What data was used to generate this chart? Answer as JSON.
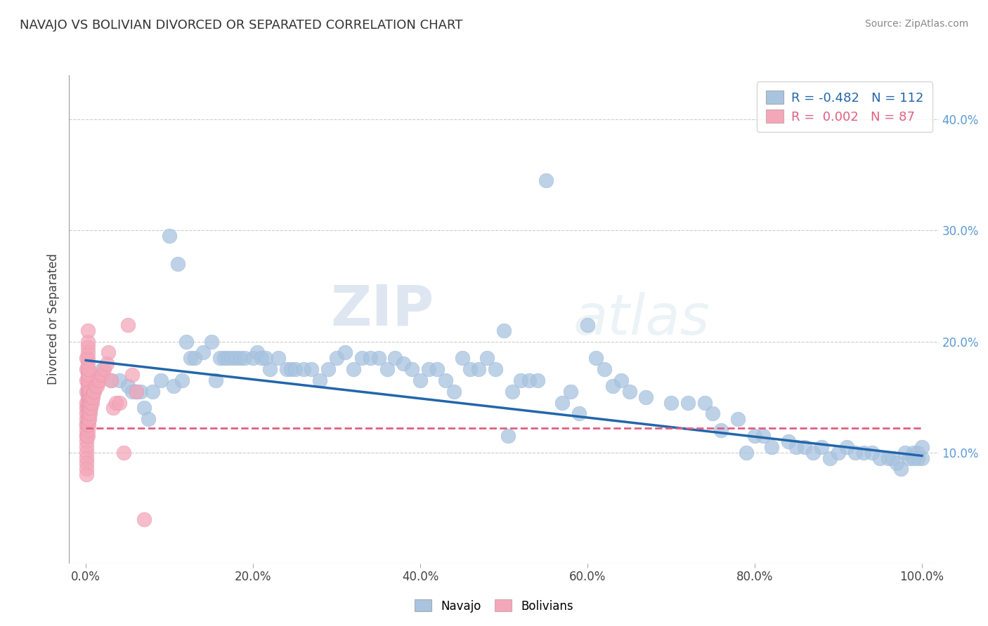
{
  "title": "NAVAJO VS BOLIVIAN DIVORCED OR SEPARATED CORRELATION CHART",
  "source_text": "Source: ZipAtlas.com",
  "ylabel": "Divorced or Separated",
  "navajo_R": "-0.482",
  "navajo_N": "112",
  "bolivian_R": "0.002",
  "bolivian_N": "87",
  "navajo_color": "#a8c4e0",
  "bolivian_color": "#f4a7b9",
  "navajo_line_color": "#2266aa",
  "bolivian_line_color": "#e06080",
  "background_color": "#ffffff",
  "grid_color": "#cccccc",
  "watermark_zip": "ZIP",
  "watermark_atlas": "atlas",
  "xlim": [
    -0.02,
    1.02
  ],
  "ylim": [
    0.0,
    0.44
  ],
  "xticks": [
    0.0,
    0.2,
    0.4,
    0.6,
    0.8,
    1.0
  ],
  "xticklabels": [
    "0.0%",
    "20.0%",
    "40.0%",
    "60.0%",
    "80.0%",
    "100.0%"
  ],
  "yticks_right": [
    0.1,
    0.2,
    0.3,
    0.4
  ],
  "yticklabels_right": [
    "10.0%",
    "20.0%",
    "30.0%",
    "40.0%"
  ],
  "navajo_x": [
    0.02,
    0.03,
    0.04,
    0.05,
    0.055,
    0.06,
    0.065,
    0.07,
    0.075,
    0.08,
    0.09,
    0.1,
    0.105,
    0.11,
    0.115,
    0.12,
    0.125,
    0.13,
    0.14,
    0.15,
    0.155,
    0.16,
    0.165,
    0.17,
    0.175,
    0.18,
    0.185,
    0.19,
    0.2,
    0.205,
    0.21,
    0.215,
    0.22,
    0.23,
    0.24,
    0.245,
    0.25,
    0.26,
    0.27,
    0.28,
    0.29,
    0.3,
    0.31,
    0.32,
    0.33,
    0.34,
    0.35,
    0.36,
    0.37,
    0.38,
    0.39,
    0.4,
    0.41,
    0.42,
    0.43,
    0.44,
    0.45,
    0.46,
    0.47,
    0.48,
    0.49,
    0.5,
    0.505,
    0.51,
    0.52,
    0.53,
    0.54,
    0.55,
    0.57,
    0.58,
    0.59,
    0.6,
    0.61,
    0.62,
    0.63,
    0.64,
    0.65,
    0.67,
    0.7,
    0.72,
    0.74,
    0.75,
    0.76,
    0.78,
    0.79,
    0.8,
    0.81,
    0.82,
    0.84,
    0.85,
    0.86,
    0.87,
    0.88,
    0.89,
    0.9,
    0.91,
    0.92,
    0.93,
    0.94,
    0.95,
    0.96,
    0.965,
    0.97,
    0.975,
    0.98,
    0.985,
    0.99,
    0.995,
    1.0,
    1.0,
    0.995,
    0.99
  ],
  "navajo_y": [
    0.175,
    0.165,
    0.165,
    0.16,
    0.155,
    0.155,
    0.155,
    0.14,
    0.13,
    0.155,
    0.165,
    0.295,
    0.16,
    0.27,
    0.165,
    0.2,
    0.185,
    0.185,
    0.19,
    0.2,
    0.165,
    0.185,
    0.185,
    0.185,
    0.185,
    0.185,
    0.185,
    0.185,
    0.185,
    0.19,
    0.185,
    0.185,
    0.175,
    0.185,
    0.175,
    0.175,
    0.175,
    0.175,
    0.175,
    0.165,
    0.175,
    0.185,
    0.19,
    0.175,
    0.185,
    0.185,
    0.185,
    0.175,
    0.185,
    0.18,
    0.175,
    0.165,
    0.175,
    0.175,
    0.165,
    0.155,
    0.185,
    0.175,
    0.175,
    0.185,
    0.175,
    0.21,
    0.115,
    0.155,
    0.165,
    0.165,
    0.165,
    0.345,
    0.145,
    0.155,
    0.135,
    0.215,
    0.185,
    0.175,
    0.16,
    0.165,
    0.155,
    0.15,
    0.145,
    0.145,
    0.145,
    0.135,
    0.12,
    0.13,
    0.1,
    0.115,
    0.115,
    0.105,
    0.11,
    0.105,
    0.105,
    0.1,
    0.105,
    0.095,
    0.1,
    0.105,
    0.1,
    0.1,
    0.1,
    0.095,
    0.095,
    0.095,
    0.09,
    0.085,
    0.1,
    0.095,
    0.1,
    0.1,
    0.095,
    0.105,
    0.095,
    0.095
  ],
  "bolivian_x": [
    0.001,
    0.001,
    0.001,
    0.001,
    0.001,
    0.001,
    0.001,
    0.001,
    0.001,
    0.001,
    0.001,
    0.001,
    0.001,
    0.001,
    0.001,
    0.001,
    0.001,
    0.001,
    0.001,
    0.001,
    0.002,
    0.002,
    0.002,
    0.002,
    0.002,
    0.002,
    0.002,
    0.002,
    0.002,
    0.002,
    0.002,
    0.002,
    0.002,
    0.002,
    0.002,
    0.002,
    0.002,
    0.002,
    0.002,
    0.003,
    0.003,
    0.003,
    0.003,
    0.003,
    0.003,
    0.003,
    0.003,
    0.003,
    0.003,
    0.003,
    0.004,
    0.004,
    0.004,
    0.004,
    0.004,
    0.004,
    0.005,
    0.005,
    0.005,
    0.005,
    0.005,
    0.006,
    0.006,
    0.006,
    0.007,
    0.007,
    0.008,
    0.009,
    0.01,
    0.012,
    0.013,
    0.015,
    0.017,
    0.018,
    0.02,
    0.022,
    0.025,
    0.027,
    0.03,
    0.033,
    0.036,
    0.04,
    0.045,
    0.05,
    0.055,
    0.06,
    0.07
  ],
  "bolivian_y": [
    0.125,
    0.13,
    0.14,
    0.115,
    0.12,
    0.11,
    0.105,
    0.1,
    0.095,
    0.09,
    0.085,
    0.08,
    0.115,
    0.125,
    0.135,
    0.145,
    0.155,
    0.165,
    0.175,
    0.185,
    0.115,
    0.12,
    0.125,
    0.13,
    0.135,
    0.14,
    0.145,
    0.15,
    0.155,
    0.16,
    0.165,
    0.17,
    0.175,
    0.18,
    0.185,
    0.19,
    0.195,
    0.2,
    0.21,
    0.125,
    0.13,
    0.135,
    0.14,
    0.145,
    0.15,
    0.155,
    0.16,
    0.165,
    0.17,
    0.175,
    0.13,
    0.135,
    0.14,
    0.145,
    0.15,
    0.155,
    0.135,
    0.14,
    0.145,
    0.15,
    0.155,
    0.14,
    0.145,
    0.15,
    0.145,
    0.15,
    0.15,
    0.155,
    0.155,
    0.16,
    0.16,
    0.165,
    0.165,
    0.17,
    0.17,
    0.175,
    0.18,
    0.19,
    0.165,
    0.14,
    0.145,
    0.145,
    0.1,
    0.215,
    0.17,
    0.155,
    0.04
  ]
}
